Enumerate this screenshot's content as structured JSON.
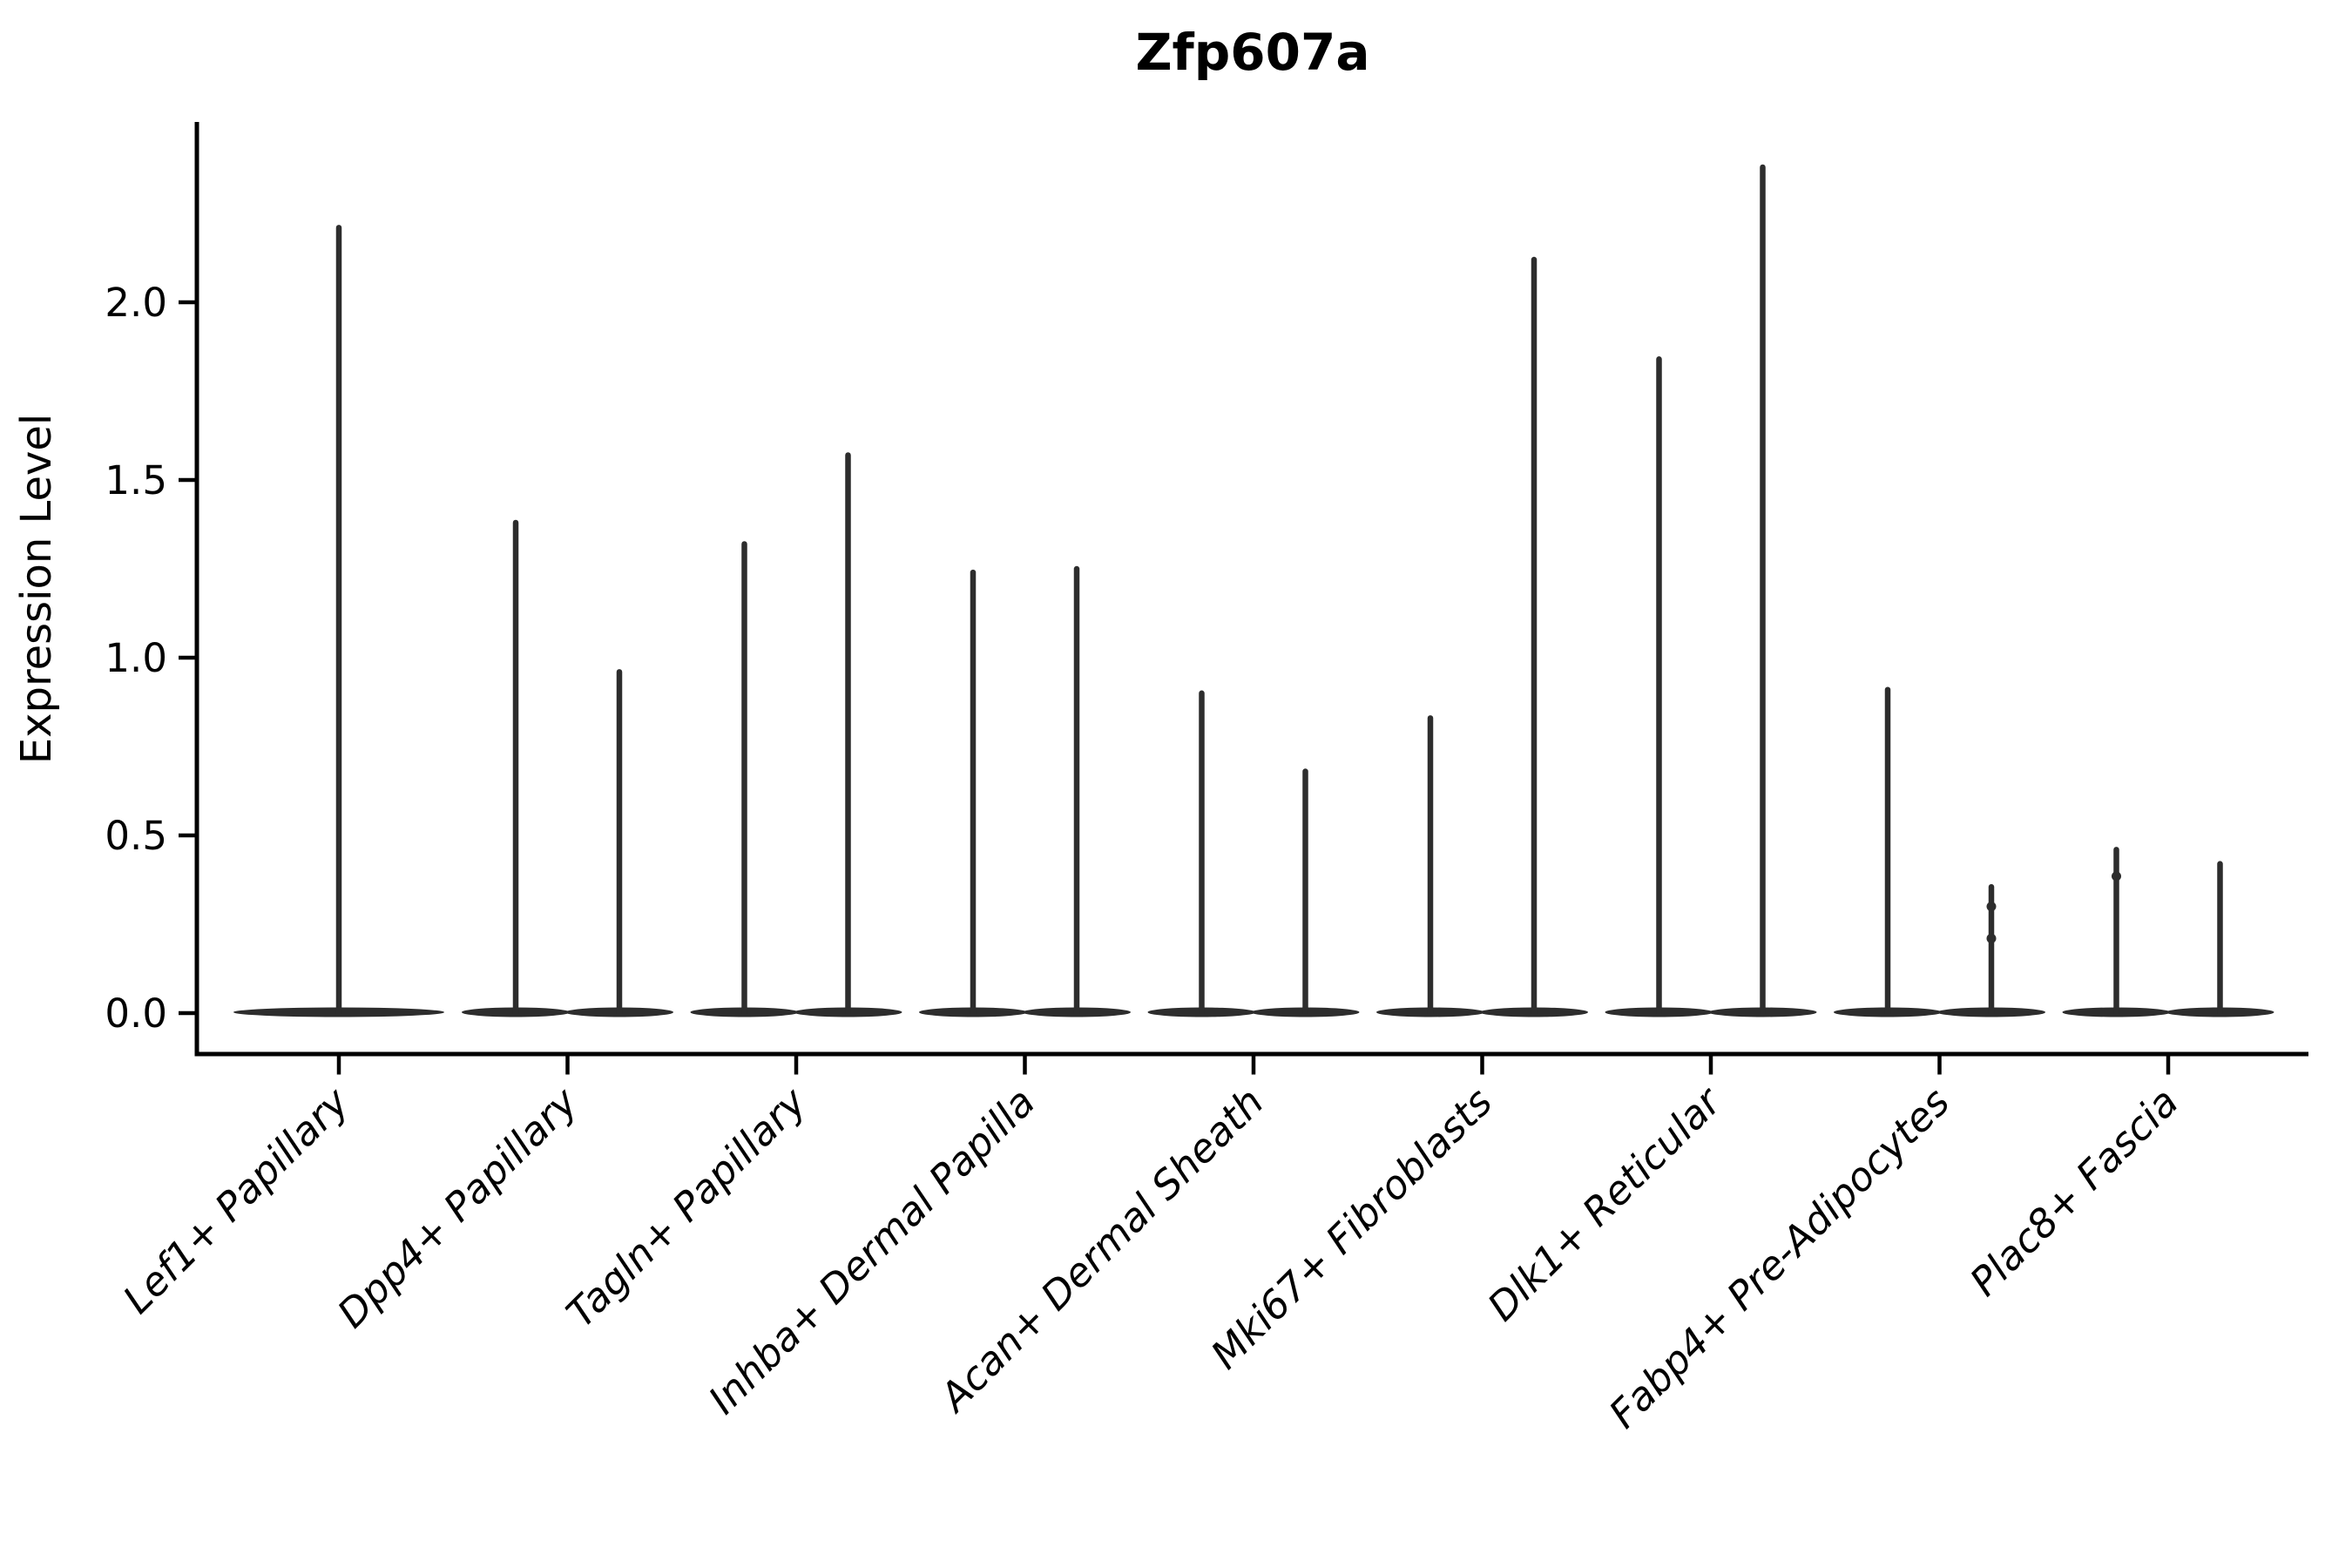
{
  "chart_data": {
    "type": "violin",
    "title": "Zfp607a",
    "ylabel": "Expression Level",
    "xlabel": "",
    "yticks": [
      0.0,
      0.5,
      1.0,
      1.5,
      2.0
    ],
    "ylim": [
      -0.12,
      2.51
    ],
    "grid": false,
    "legend": "none",
    "categories": [
      "Lef1+ Papillary",
      "Dpp4+ Papillary",
      "Tagln+ Papillary",
      "Inhba+ Dermal Papilla",
      "Acan+ Dermal Sheath",
      "Mki67+ Fibroblasts",
      "Dlk1+ Reticular",
      "Fabp4+ Pre-Adipocytes",
      "Plac8+ Fascia"
    ],
    "series": [
      {
        "category": "Lef1+ Papillary",
        "violins": [
          {
            "max": 2.21,
            "bumps": []
          }
        ]
      },
      {
        "category": "Dpp4+ Papillary",
        "violins": [
          {
            "max": 1.38,
            "bumps": []
          },
          {
            "max": 0.96,
            "bumps": []
          }
        ]
      },
      {
        "category": "Tagln+ Papillary",
        "violins": [
          {
            "max": 1.32,
            "bumps": []
          },
          {
            "max": 1.57,
            "bumps": []
          }
        ]
      },
      {
        "category": "Inhba+ Dermal Papilla",
        "violins": [
          {
            "max": 1.24,
            "bumps": []
          },
          {
            "max": 1.25,
            "bumps": []
          }
        ]
      },
      {
        "category": "Acan+ Dermal Sheath",
        "violins": [
          {
            "max": 0.9,
            "bumps": []
          },
          {
            "max": 0.68,
            "bumps": []
          }
        ]
      },
      {
        "category": "Mki67+ Fibroblasts",
        "violins": [
          {
            "max": 0.83,
            "bumps": []
          },
          {
            "max": 2.12,
            "bumps": []
          }
        ]
      },
      {
        "category": "Dlk1+ Reticular",
        "violins": [
          {
            "max": 1.84,
            "bumps": []
          },
          {
            "max": 2.38,
            "bumps": []
          }
        ]
      },
      {
        "category": "Fabp4+ Pre-Adipocytes",
        "violins": [
          {
            "max": 0.91,
            "bumps": []
          },
          {
            "max": 0.355,
            "bumps": [
              0.3,
              0.21
            ]
          }
        ]
      },
      {
        "category": "Plac8+ Fascia",
        "violins": [
          {
            "max": 0.46,
            "bumps": [
              0.385
            ]
          },
          {
            "max": 0.42,
            "bumps": []
          }
        ]
      }
    ],
    "colors": {
      "violin": "#2d2d2d",
      "axis": "#000000",
      "text": "#000000",
      "background": "#ffffff"
    }
  }
}
